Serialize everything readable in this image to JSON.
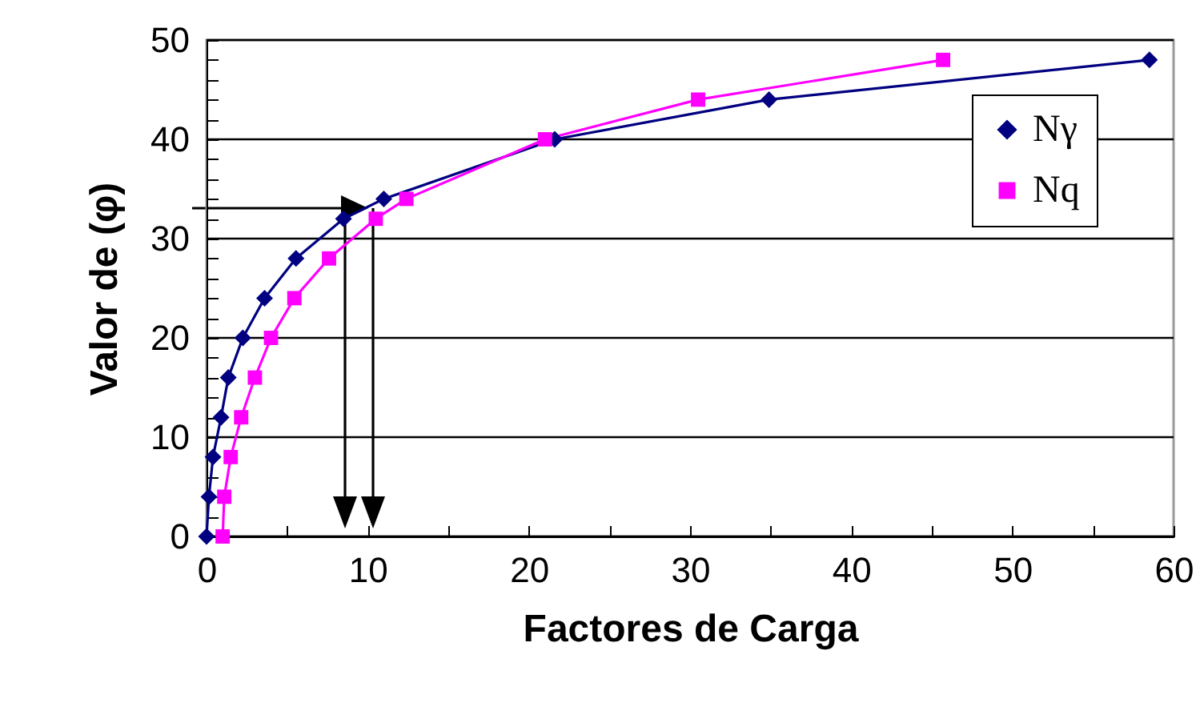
{
  "chart_data": {
    "type": "line",
    "xlabel": "Factores de Carga",
    "ylabel": "Valor de (φ)",
    "series": [
      {
        "name": "Nγ",
        "color": "#000080",
        "marker": "diamond",
        "x": [
          0,
          0.15,
          0.4,
          0.9,
          1.35,
          2.25,
          3.6,
          5.55,
          8.5,
          11,
          21.6,
          34.9,
          58.5
        ],
        "values": [
          0,
          4,
          8,
          12,
          16,
          20,
          24,
          28,
          32,
          34,
          40,
          44,
          48
        ]
      },
      {
        "name": "Nq",
        "color": "#ff00ff",
        "marker": "square",
        "x": [
          1,
          1.1,
          1.5,
          2.15,
          3,
          4,
          5.45,
          7.6,
          10.5,
          12.4,
          21,
          30.5,
          45.7
        ],
        "values": [
          0,
          4,
          8,
          12,
          16,
          20,
          24,
          28,
          32,
          34,
          40,
          44,
          48
        ]
      }
    ],
    "xlim": [
      0,
      60
    ],
    "ylim": [
      0,
      50
    ],
    "xticks": [
      0,
      {
        "value": 5,
        "label": null
      },
      10,
      {
        "value": 15,
        "label": null
      },
      20,
      {
        "value": 25,
        "label": null
      },
      30,
      {
        "value": 35,
        "label": null
      },
      40,
      {
        "value": 45,
        "label": null
      },
      50,
      {
        "value": 55,
        "label": null
      },
      60
    ],
    "yticks": [
      0,
      {
        "value": 2,
        "label": null
      },
      {
        "value": 4,
        "label": null
      },
      {
        "value": 6,
        "label": null
      },
      {
        "value": 8,
        "label": null
      },
      10,
      {
        "value": 12,
        "label": null
      },
      {
        "value": 14,
        "label": null
      },
      {
        "value": 16,
        "label": null
      },
      {
        "value": 18,
        "label": null
      },
      20,
      {
        "value": 22,
        "label": null
      },
      {
        "value": 24,
        "label": null
      },
      {
        "value": 26,
        "label": null
      },
      {
        "value": 28,
        "label": null
      },
      30,
      {
        "value": 32,
        "label": null
      },
      {
        "value": 34,
        "label": null
      },
      {
        "value": 36,
        "label": null
      },
      {
        "value": 38,
        "label": null
      },
      40,
      {
        "value": 42,
        "label": null
      },
      {
        "value": 44,
        "label": null
      },
      {
        "value": 46,
        "label": null
      },
      {
        "value": 48,
        "label": null
      },
      50
    ],
    "grid": "y",
    "legend": "top right"
  }
}
